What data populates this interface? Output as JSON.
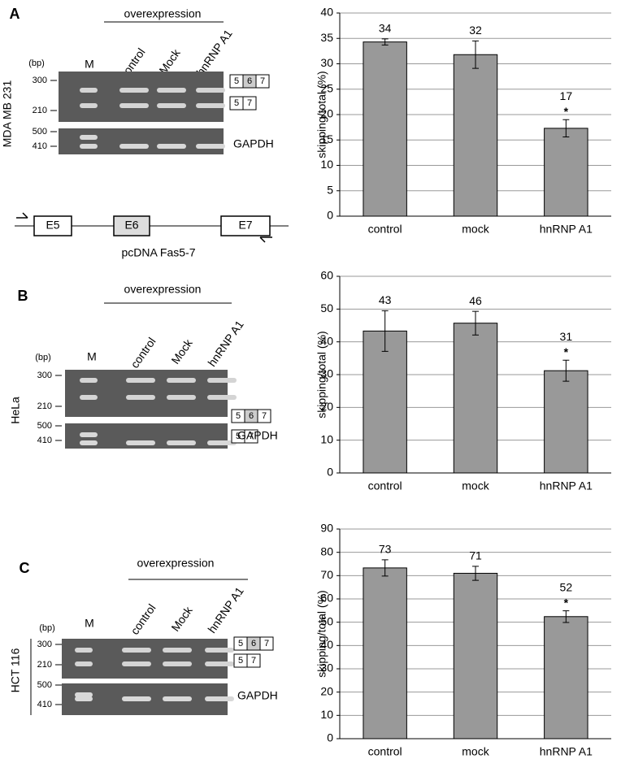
{
  "chart_data": [
    {
      "type": "bar",
      "ylabel": "skipping/total (%)",
      "categories": [
        "control",
        "mock",
        "hnRNP A1"
      ],
      "values": [
        34.3,
        31.8,
        17.3
      ],
      "errors": [
        0.6,
        2.7,
        1.7
      ],
      "value_labels": [
        "34",
        "32",
        "17"
      ],
      "significance": [
        null,
        null,
        "*"
      ],
      "color": "#999999",
      "ylim": [
        0,
        40
      ],
      "yticks": [
        0,
        5,
        10,
        15,
        20,
        25,
        30,
        35,
        40
      ],
      "grid": true
    },
    {
      "type": "bar",
      "ylabel": "skipping/total (%)",
      "categories": [
        "control",
        "mock",
        "hnRNP A1"
      ],
      "values": [
        43.3,
        45.7,
        31.2
      ],
      "errors": [
        6.2,
        3.6,
        3.2
      ],
      "value_labels": [
        "43",
        "46",
        "31"
      ],
      "significance": [
        null,
        null,
        "*"
      ],
      "color": "#999999",
      "ylim": [
        0,
        60
      ],
      "yticks": [
        0,
        10,
        20,
        30,
        40,
        50,
        60
      ],
      "grid": true
    },
    {
      "type": "bar",
      "ylabel": "skipping/total (%)",
      "categories": [
        "control",
        "mock",
        "hnRNP A1"
      ],
      "values": [
        73.3,
        71,
        52.4
      ],
      "errors": [
        3.5,
        3,
        2.5
      ],
      "value_labels": [
        "73",
        "71",
        "52"
      ],
      "significance": [
        null,
        null,
        "*"
      ],
      "color": "#999999",
      "ylim": [
        0,
        90
      ],
      "yticks": [
        0,
        10,
        20,
        30,
        40,
        50,
        60,
        70,
        80,
        90
      ],
      "grid": true
    }
  ],
  "panels": [
    {
      "letter": "A",
      "header": "overexpression",
      "lanes": [
        "M",
        "control",
        "Mock",
        "hnRNP A1"
      ],
      "unit": "(bp)",
      "sizes": [
        "300",
        "210",
        "500",
        "410"
      ],
      "cell_line": "MDA MB 231",
      "exons_long": [
        "5",
        "6",
        "7"
      ],
      "exons_short": [
        "5",
        "7"
      ],
      "control_gene": "GAPDH"
    },
    {
      "letter": "B",
      "header": "overexpression",
      "lanes": [
        "M",
        "control",
        "Mock",
        "hnRNP A1"
      ],
      "unit": "(bp)",
      "sizes": [
        "300",
        "210",
        "500",
        "410"
      ],
      "cell_line": "HeLa",
      "exons_long": [
        "5",
        "6",
        "7"
      ],
      "exons_short": [
        "5",
        "7"
      ],
      "control_gene": "GAPDH"
    },
    {
      "letter": "C",
      "header": "overexpression",
      "lanes": [
        "M",
        "control",
        "Mock",
        "hnRNP A1"
      ],
      "unit": "(bp)",
      "sizes": [
        "300",
        "210",
        "500",
        "410"
      ],
      "cell_line": "HCT 116",
      "exons_long": [
        "5",
        "6",
        "7"
      ],
      "exons_short": [
        "5",
        "7"
      ],
      "control_gene": "GAPDH"
    }
  ],
  "construct": {
    "exons": [
      "E5",
      "E6",
      "E7"
    ],
    "label": "pcDNA Fas5-7"
  }
}
